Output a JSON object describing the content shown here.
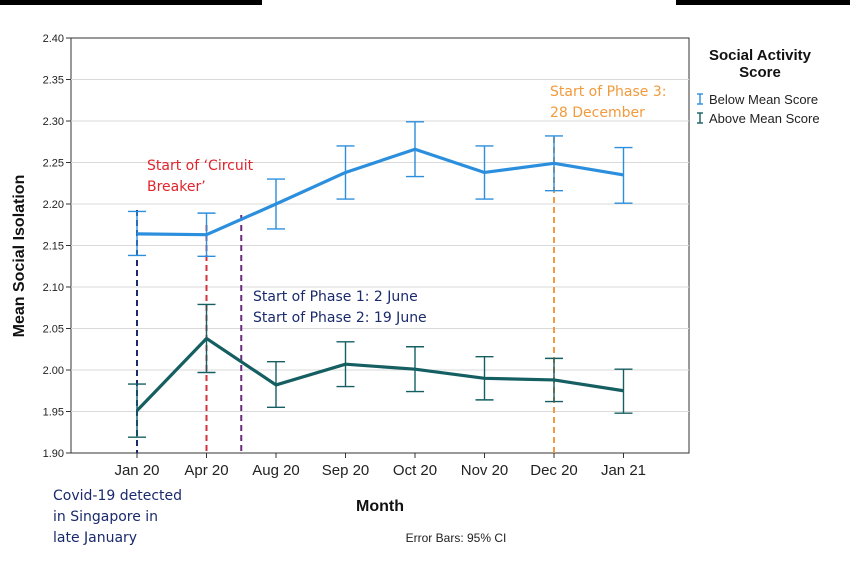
{
  "chart_data": {
    "type": "line",
    "title": "",
    "xlabel": "Month",
    "ylabel": "Mean Social Isolation",
    "ylim": [
      1.9,
      2.4
    ],
    "yticks": [
      "1.90",
      "1.95",
      "2.00",
      "2.05",
      "2.10",
      "2.15",
      "2.20",
      "2.25",
      "2.30",
      "2.35",
      "2.40"
    ],
    "categories": [
      "Jan 20",
      "Apr 20",
      "Aug 20",
      "Sep 20",
      "Oct 20",
      "Nov 20",
      "Dec 20",
      "Jan 21"
    ],
    "grid": true,
    "legend_position": "top-right",
    "legend_title": "Social Activity Score",
    "series": [
      {
        "name": "Below Mean Score",
        "color": "#2b8fdd",
        "values": [
          2.164,
          2.163,
          2.2,
          2.238,
          2.266,
          2.238,
          2.249,
          2.235
        ],
        "ci_low": [
          2.138,
          2.137,
          2.17,
          2.206,
          2.233,
          2.206,
          2.216,
          2.201
        ],
        "ci_high": [
          2.191,
          2.189,
          2.23,
          2.27,
          2.299,
          2.27,
          2.282,
          2.268
        ]
      },
      {
        "name": "Above Mean Score",
        "color": "#155f62",
        "values": [
          1.951,
          2.038,
          1.982,
          2.007,
          2.001,
          1.99,
          1.988,
          1.975
        ],
        "ci_low": [
          1.919,
          1.997,
          1.955,
          1.98,
          1.974,
          1.964,
          1.962,
          1.948
        ],
        "ci_high": [
          1.983,
          2.079,
          2.01,
          2.034,
          2.028,
          2.016,
          2.014,
          2.001
        ]
      }
    ],
    "annotations": [
      {
        "lines": [
          "Start of ‘Circuit",
          "Breaker’"
        ],
        "color": "#e0242c",
        "x_pos": 1.0
      },
      {
        "lines": [
          "Start of Phase 1: 2 June",
          "Start of Phase 2: 19 June"
        ],
        "color": "#1a2a6c",
        "x_pos": 1.5
      },
      {
        "lines": [
          "Start of Phase 3:",
          "28 December"
        ],
        "color": "#f39a3c",
        "x_pos": 6.0
      },
      {
        "lines": [
          "Covid-19 detected",
          "in Singapore in",
          "late January"
        ],
        "color": "#1a2a6c",
        "x_pos": 0.0
      }
    ],
    "markers": [
      {
        "x_pos": 0.0,
        "color": "#1a2a6c"
      },
      {
        "x_pos": 1.0,
        "color": "#d2323c"
      },
      {
        "x_pos": 1.5,
        "color": "#6a2b7a"
      },
      {
        "x_pos": 6.0,
        "color": "#f39a3c"
      }
    ],
    "footnote": "Error Bars: 95% CI"
  }
}
